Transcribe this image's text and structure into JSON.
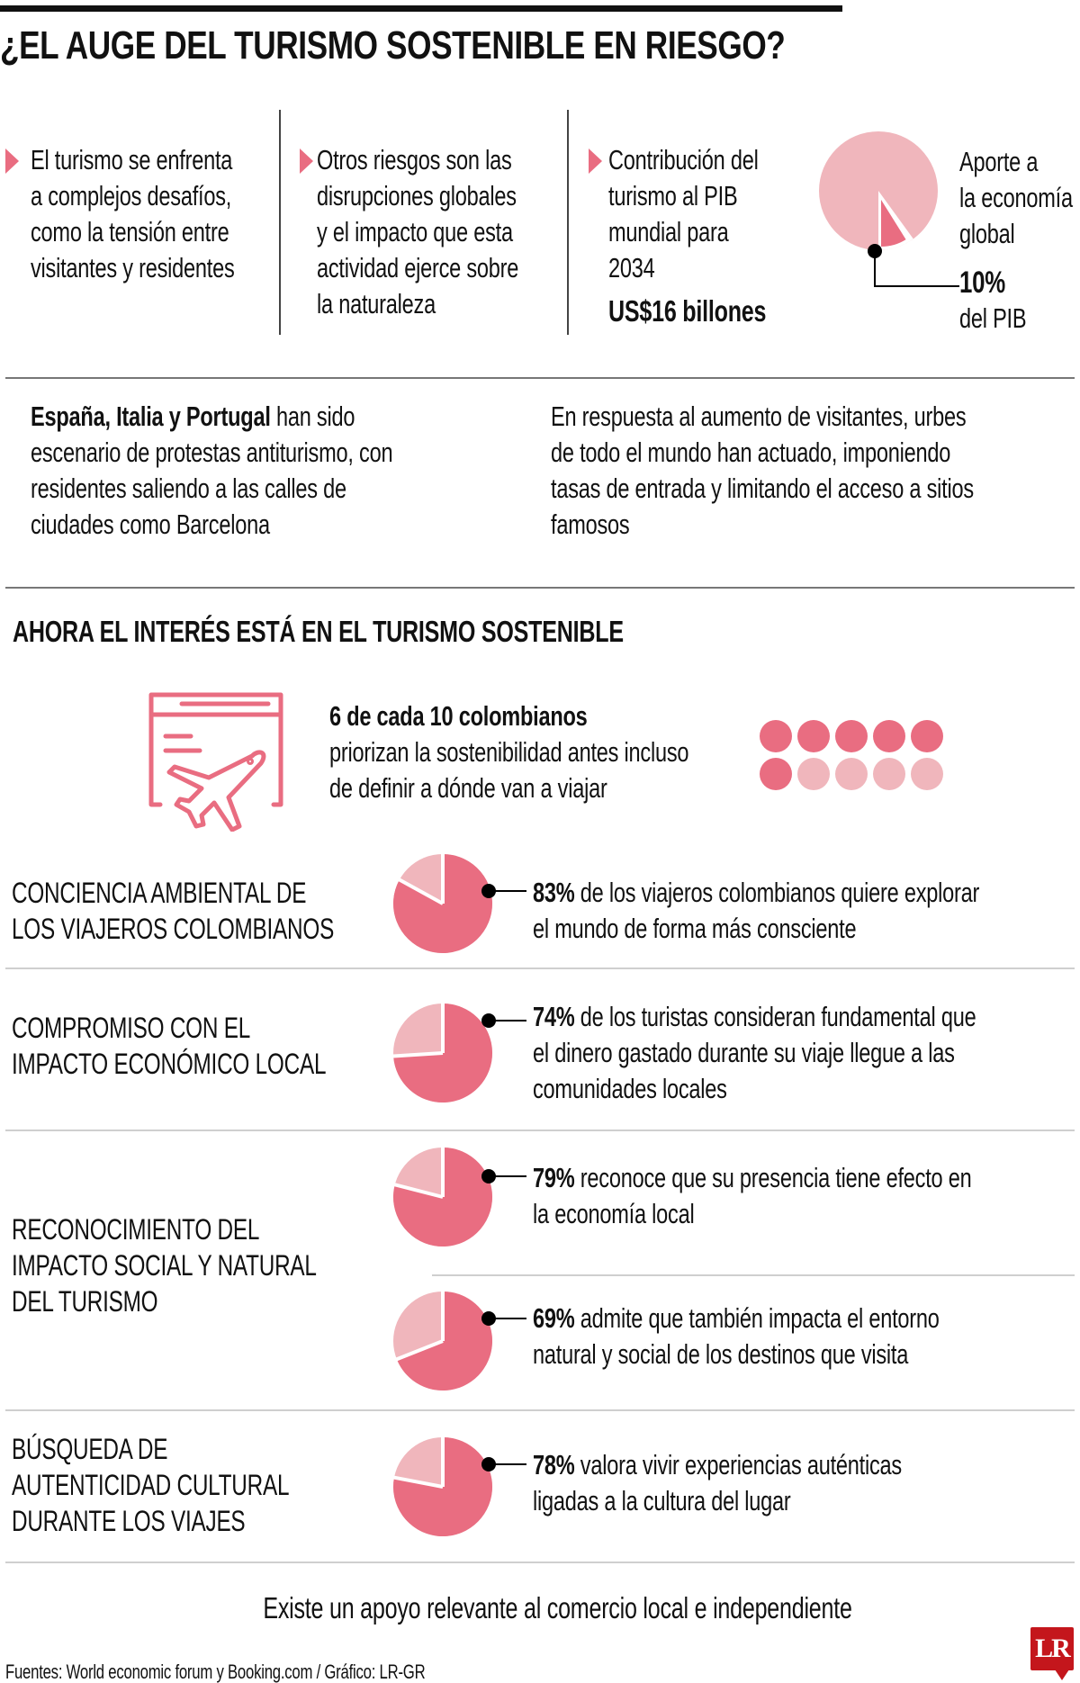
{
  "title": "¿EL AUGE DEL TURISMO SOSTENIBLE EN RIESGO?",
  "columns": [
    {
      "lines": [
        "El turismo se enfrenta",
        "a complejos desafíos,",
        "como la tensión entre",
        "visitantes y residentes"
      ]
    },
    {
      "lines": [
        "Otros riesgos son las",
        "disrupciones globales",
        "y el impacto que esta",
        "actividad ejerce sobre",
        "la naturaleza"
      ]
    },
    {
      "lines": [
        "Contribución del",
        "turismo al PIB",
        "mundial para",
        "2034"
      ],
      "highlight": "US$16 billones"
    }
  ],
  "gdp_pie": {
    "lines": [
      "Aporte a",
      "la economía",
      "global"
    ],
    "value_label": "10%",
    "suffix": "del PIB",
    "percent": 10
  },
  "paragraphs": {
    "left": {
      "bold": "España, Italia y Portugal",
      "first_rest": " han sido",
      "lines": [
        "escenario de protestas antiturismo, con",
        "residentes saliendo a las calles de",
        "ciudades como Barcelona"
      ]
    },
    "right": {
      "lines": [
        "En respuesta al aumento de visitantes, urbes",
        "de todo el mundo han actuado, imponiendo",
        "tasas de entrada y limitando el acceso a sitios",
        "famosos"
      ]
    }
  },
  "subtitle": "AHORA EL INTERÉS ESTÁ EN EL TURISMO SOSTENIBLE",
  "highlight": {
    "bold": "6 de cada 10 colombianos",
    "lines": [
      "priorizan la sostenibilidad antes incluso",
      "de definir a dónde van a viajar"
    ],
    "filled": 6,
    "total": 10,
    "icon": "browser-plane-icon"
  },
  "rows": [
    {
      "label": [
        "CONCIENCIA AMBIENTAL DE",
        "LOS VIAJEROS COLOMBIANOS"
      ],
      "pct": "83%",
      "percent": 83,
      "lines": [
        " de los viajeros colombianos quiere explorar",
        "el mundo de forma más consciente"
      ]
    },
    {
      "label": [
        "COMPROMISO CON EL",
        "IMPACTO ECONÓMICO LOCAL"
      ],
      "pct": "74%",
      "percent": 74,
      "lines": [
        " de los turistas consideran fundamental que",
        "el dinero gastado durante su viaje llegue a las",
        "comunidades locales"
      ]
    },
    {
      "label": [
        "RECONOCIMIENTO DEL",
        "IMPACTO SOCIAL Y NATURAL",
        "DEL TURISMO"
      ],
      "pct": "79%",
      "percent": 79,
      "lines": [
        " reconoce que su presencia tiene efecto en",
        "la economía local"
      ]
    },
    {
      "pct": "69%",
      "percent": 69,
      "lines": [
        " admite que también impacta el entorno",
        "natural y social de los destinos que visita"
      ]
    },
    {
      "label": [
        "BÚSQUEDA DE",
        "AUTENTICIDAD CULTURAL",
        "DURANTE LOS VIAJES"
      ],
      "pct": "78%",
      "percent": 78,
      "lines": [
        " valora vivir experiencias auténticas",
        "ligadas a la cultura del lugar"
      ]
    }
  ],
  "closing": "Existe un apoyo relevante al comercio local e independiente",
  "source": "Fuentes: World economic forum y Booking.com / Gráfico: LR-GR",
  "logo": "LR",
  "colors": {
    "dark": "#e96d81",
    "light": "#f0b6bc",
    "logo": "#c4161c"
  }
}
